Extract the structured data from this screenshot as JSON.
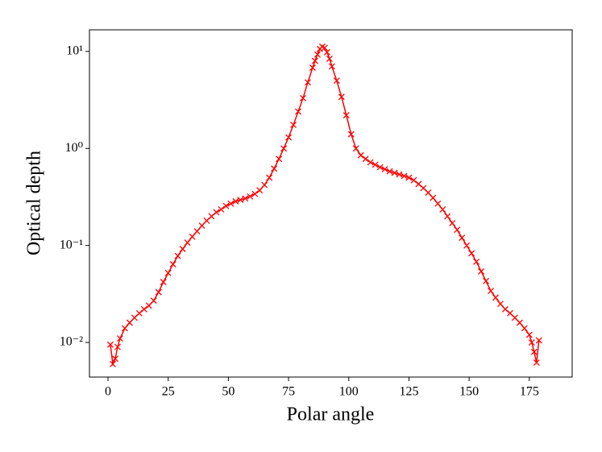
{
  "chart_data": {
    "type": "line",
    "x_label": "Polar angle",
    "y_label": "Optical depth",
    "y_scale": "log",
    "marker": "x",
    "xlim": [
      -7.7,
      192.8
    ],
    "xticks": [
      0,
      25,
      50,
      75,
      100,
      125,
      150,
      175
    ],
    "ylim": [
      0.0044,
      16.7
    ],
    "yticks": [
      {
        "value": 0.01,
        "label": "10⁻²"
      },
      {
        "value": 0.1,
        "label": "10⁻¹"
      },
      {
        "value": 1,
        "label": "10⁰"
      },
      {
        "value": 10,
        "label": "10¹"
      }
    ],
    "x": [
      1,
      2,
      3,
      4,
      5,
      7,
      9,
      11,
      13,
      15,
      17,
      19,
      21,
      23,
      25,
      27,
      29,
      31,
      33,
      35,
      37,
      39,
      41,
      43,
      45,
      47,
      49,
      51,
      53,
      55,
      57,
      59,
      61,
      63,
      65,
      67,
      69,
      71,
      73,
      75,
      77,
      79,
      81,
      83,
      85,
      86,
      87,
      88,
      89,
      90,
      91,
      92,
      93,
      95,
      97,
      99,
      101,
      103,
      105,
      107,
      109,
      111,
      113,
      115,
      117,
      119,
      121,
      123,
      125,
      127,
      129,
      131,
      133,
      135,
      137,
      139,
      141,
      143,
      145,
      147,
      149,
      151,
      153,
      155,
      157,
      159,
      161,
      163,
      165,
      167,
      169,
      171,
      173,
      175,
      176,
      177,
      178,
      179
    ],
    "series": [
      {
        "color": "#ff0000",
        "values": [
          0.0095,
          0.006,
          0.0068,
          0.009,
          0.011,
          0.014,
          0.016,
          0.018,
          0.02,
          0.022,
          0.024,
          0.027,
          0.033,
          0.042,
          0.052,
          0.064,
          0.078,
          0.092,
          0.107,
          0.123,
          0.14,
          0.16,
          0.18,
          0.2,
          0.22,
          0.235,
          0.255,
          0.27,
          0.285,
          0.295,
          0.305,
          0.32,
          0.34,
          0.37,
          0.42,
          0.5,
          0.62,
          0.78,
          1.0,
          1.3,
          1.75,
          2.4,
          3.3,
          4.8,
          6.8,
          8,
          9.3,
          10.6,
          11.2,
          10.9,
          9.8,
          8.4,
          7.0,
          5.0,
          3.4,
          2.2,
          1.4,
          1.0,
          0.85,
          0.78,
          0.72,
          0.68,
          0.64,
          0.61,
          0.58,
          0.56,
          0.54,
          0.52,
          0.5,
          0.47,
          0.43,
          0.39,
          0.35,
          0.31,
          0.27,
          0.235,
          0.2,
          0.17,
          0.145,
          0.12,
          0.1,
          0.083,
          0.068,
          0.054,
          0.043,
          0.034,
          0.029,
          0.025,
          0.022,
          0.02,
          0.018,
          0.016,
          0.014,
          0.012,
          0.01,
          0.008,
          0.0062,
          0.0105
        ]
      }
    ]
  }
}
